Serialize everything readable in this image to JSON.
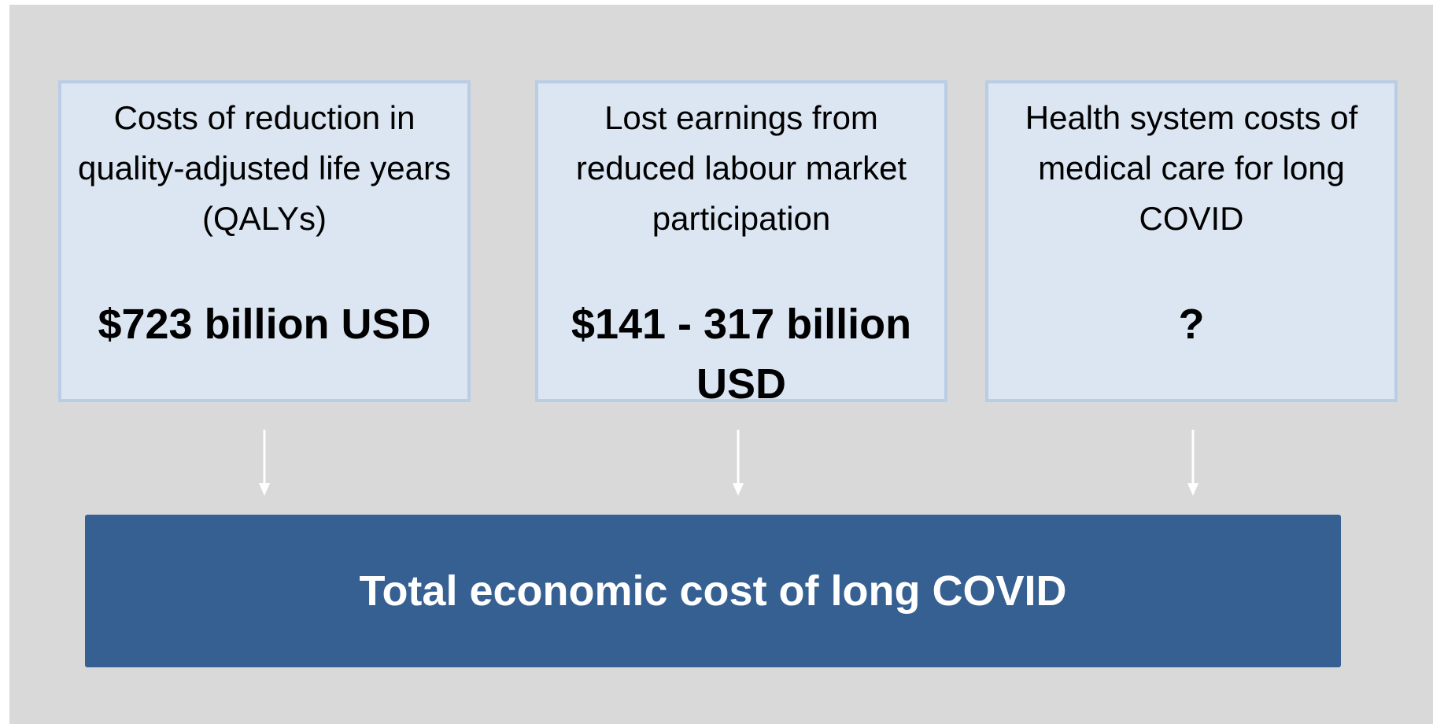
{
  "boxes": [
    {
      "label": "Costs of reduction in quality-adjusted life years (QALYs)",
      "value": "$723 billion USD"
    },
    {
      "label": "Lost earnings from reduced labour market participation",
      "value": "$141 - 317 billion USD"
    },
    {
      "label": "Health system costs of medical care for long COVID",
      "value": "?"
    }
  ],
  "total": {
    "label": "Total economic cost of long COVID"
  }
}
